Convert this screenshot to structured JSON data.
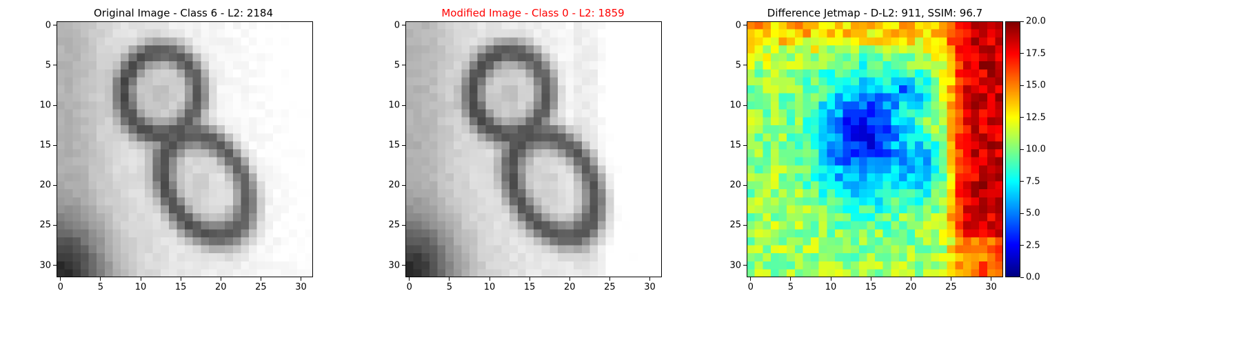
{
  "colors": {
    "title_normal": "#000000",
    "title_modified": "#ff0000"
  },
  "chart_data": [
    {
      "type": "heatmap",
      "title": "Original Image - Class 6 - L2: 2184",
      "colormap": "gray",
      "x_ticks": [
        0,
        5,
        10,
        15,
        20,
        25,
        30
      ],
      "y_ticks": [
        0,
        5,
        10,
        15,
        20,
        25,
        30
      ],
      "xlim": [
        -0.5,
        31.5
      ],
      "ylim": [
        31.5,
        -0.5
      ],
      "grid_size": [
        32,
        32
      ],
      "content": "grayscale 32x32 image of a handwritten/printed digit 8 (two stacked dark loops on light background)"
    },
    {
      "type": "heatmap",
      "title": "Modified Image - Class 0 - L2: 1859",
      "colormap": "gray",
      "x_ticks": [
        0,
        5,
        10,
        15,
        20,
        25,
        30
      ],
      "y_ticks": [
        0,
        5,
        10,
        15,
        20,
        25,
        30
      ],
      "xlim": [
        -0.5,
        31.5
      ],
      "ylim": [
        31.5,
        -0.5
      ],
      "grid_size": [
        32,
        32
      ],
      "content": "near-identical grayscale 32x32 digit 8 image with a subtly altered right side"
    },
    {
      "type": "heatmap",
      "title": "Difference Jetmap - D-L2: 911, SSIM: 96.7",
      "colormap": "jet",
      "x_ticks": [
        0,
        5,
        10,
        15,
        20,
        25,
        30
      ],
      "y_ticks": [
        0,
        5,
        10,
        15,
        20,
        25,
        30
      ],
      "xlim": [
        -0.5,
        31.5
      ],
      "ylim": [
        31.5,
        -0.5
      ],
      "grid_size": [
        32,
        32
      ],
      "colorbar": {
        "range": [
          0.0,
          20.0
        ],
        "ticks": [
          "0.0",
          "2.5",
          "5.0",
          "7.5",
          "10.0",
          "12.5",
          "15.0",
          "17.5",
          "20.0"
        ]
      },
      "content": "per-pixel difference magnitude: highest (red, ~18-20) along right columns 26-31, low (blue, ~1-5) in central loop region, mid (green/yellow, ~9-14) elsewhere"
    }
  ]
}
